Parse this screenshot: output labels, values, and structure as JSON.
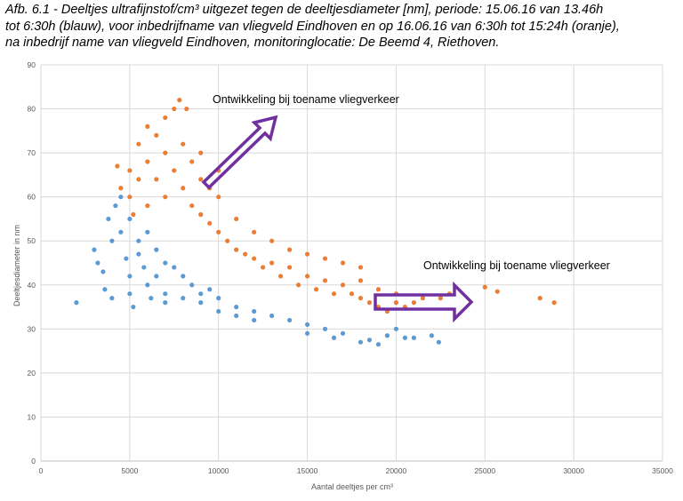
{
  "caption": {
    "line1": "Afb. 6.1 - Deeltjes ultrafijnstof/cm³ uitgezet tegen de deeltjesdiameter [nm], periode: 15.06.16 van 13.46h",
    "line2": "tot 6:30h (blauw), voor inbedrijfname van vliegveld Eindhoven en op 16.06.16 van 6:30h tot 15:24h (oranje),",
    "line3": "na inbedrijf name van vliegveld Eindhoven, monitoringlocatie: De Beemd 4, Riethoven."
  },
  "chart_data": {
    "type": "scatter",
    "xlabel": "Aantal deeltjes per cm³",
    "ylabel": "Deeltjesdiameter in nm",
    "xlim": [
      0,
      35000
    ],
    "ylim": [
      0,
      90
    ],
    "xticks": [
      "0",
      "5000",
      "10000",
      "15000",
      "20000",
      "25000",
      "30000",
      "35000"
    ],
    "yticks": [
      "0",
      "10",
      "20",
      "30",
      "40",
      "50",
      "60",
      "70",
      "80",
      "90"
    ],
    "grid": true,
    "series": [
      {
        "color": "#5b9bd5",
        "points": [
          [
            2000,
            36
          ],
          [
            3000,
            48
          ],
          [
            3200,
            45
          ],
          [
            3500,
            43
          ],
          [
            3600,
            39
          ],
          [
            3800,
            55
          ],
          [
            4000,
            50
          ],
          [
            4000,
            37
          ],
          [
            4200,
            58
          ],
          [
            4500,
            60
          ],
          [
            4500,
            52
          ],
          [
            4800,
            46
          ],
          [
            5000,
            55
          ],
          [
            5000,
            42
          ],
          [
            5000,
            38
          ],
          [
            5200,
            35
          ],
          [
            5500,
            50
          ],
          [
            5500,
            47
          ],
          [
            5800,
            44
          ],
          [
            6000,
            52
          ],
          [
            6000,
            40
          ],
          [
            6200,
            37
          ],
          [
            6500,
            48
          ],
          [
            6500,
            42
          ],
          [
            7000,
            45
          ],
          [
            7000,
            38
          ],
          [
            7000,
            36
          ],
          [
            7500,
            44
          ],
          [
            8000,
            42
          ],
          [
            8000,
            37
          ],
          [
            8500,
            40
          ],
          [
            9000,
            38
          ],
          [
            9000,
            36
          ],
          [
            9500,
            39
          ],
          [
            10000,
            37
          ],
          [
            10000,
            34
          ],
          [
            11000,
            35
          ],
          [
            11000,
            33
          ],
          [
            12000,
            34
          ],
          [
            12000,
            32
          ],
          [
            13000,
            33
          ],
          [
            14000,
            32
          ],
          [
            15000,
            31
          ],
          [
            15000,
            29
          ],
          [
            16000,
            30
          ],
          [
            16500,
            28
          ],
          [
            17000,
            29
          ],
          [
            18000,
            27
          ],
          [
            18500,
            27.5
          ],
          [
            19000,
            26.5
          ],
          [
            19500,
            28.5
          ],
          [
            20000,
            30
          ],
          [
            20500,
            28
          ],
          [
            21000,
            28
          ],
          [
            22000,
            28.5
          ],
          [
            22400,
            27
          ]
        ]
      },
      {
        "color": "#ed7d31",
        "points": [
          [
            4300,
            67
          ],
          [
            4500,
            62
          ],
          [
            5000,
            60
          ],
          [
            5000,
            66
          ],
          [
            5200,
            56
          ],
          [
            5500,
            64
          ],
          [
            5500,
            72
          ],
          [
            6000,
            58
          ],
          [
            6000,
            68
          ],
          [
            6000,
            76
          ],
          [
            6500,
            64
          ],
          [
            6500,
            74
          ],
          [
            7000,
            60
          ],
          [
            7000,
            70
          ],
          [
            7000,
            78
          ],
          [
            7500,
            66
          ],
          [
            7500,
            80
          ],
          [
            7800,
            82
          ],
          [
            8000,
            62
          ],
          [
            8000,
            72
          ],
          [
            8200,
            80
          ],
          [
            8500,
            58
          ],
          [
            8500,
            68
          ],
          [
            9000,
            56
          ],
          [
            9000,
            64
          ],
          [
            9000,
            70
          ],
          [
            9500,
            54
          ],
          [
            9500,
            62
          ],
          [
            10000,
            52
          ],
          [
            10000,
            60
          ],
          [
            10000,
            66
          ],
          [
            10500,
            50
          ],
          [
            11000,
            48
          ],
          [
            11000,
            55
          ],
          [
            11500,
            47
          ],
          [
            12000,
            46
          ],
          [
            12000,
            52
          ],
          [
            12500,
            44
          ],
          [
            13000,
            45
          ],
          [
            13000,
            50
          ],
          [
            13500,
            42
          ],
          [
            14000,
            44
          ],
          [
            14000,
            48
          ],
          [
            14500,
            40
          ],
          [
            15000,
            42
          ],
          [
            15000,
            47
          ],
          [
            15500,
            39
          ],
          [
            16000,
            41
          ],
          [
            16000,
            46
          ],
          [
            16500,
            38
          ],
          [
            17000,
            40
          ],
          [
            17000,
            45
          ],
          [
            17500,
            38
          ],
          [
            18000,
            37
          ],
          [
            18000,
            41
          ],
          [
            18000,
            44
          ],
          [
            18500,
            36
          ],
          [
            19000,
            35
          ],
          [
            19000,
            39
          ],
          [
            19500,
            34
          ],
          [
            20000,
            36
          ],
          [
            20000,
            38
          ],
          [
            20500,
            35
          ],
          [
            21000,
            36
          ],
          [
            21500,
            37
          ],
          [
            22500,
            37
          ],
          [
            23000,
            38
          ],
          [
            25000,
            39.5
          ],
          [
            25700,
            38.5
          ],
          [
            28100,
            37
          ],
          [
            28900,
            36
          ]
        ]
      }
    ],
    "annotations": [
      {
        "text": "Ontwikkeling bij toename vliegverkeer",
        "color": "#7030a0"
      },
      {
        "text": "Ontwikkeling bij toename vliegverkeer",
        "color": "#7030a0"
      }
    ]
  }
}
